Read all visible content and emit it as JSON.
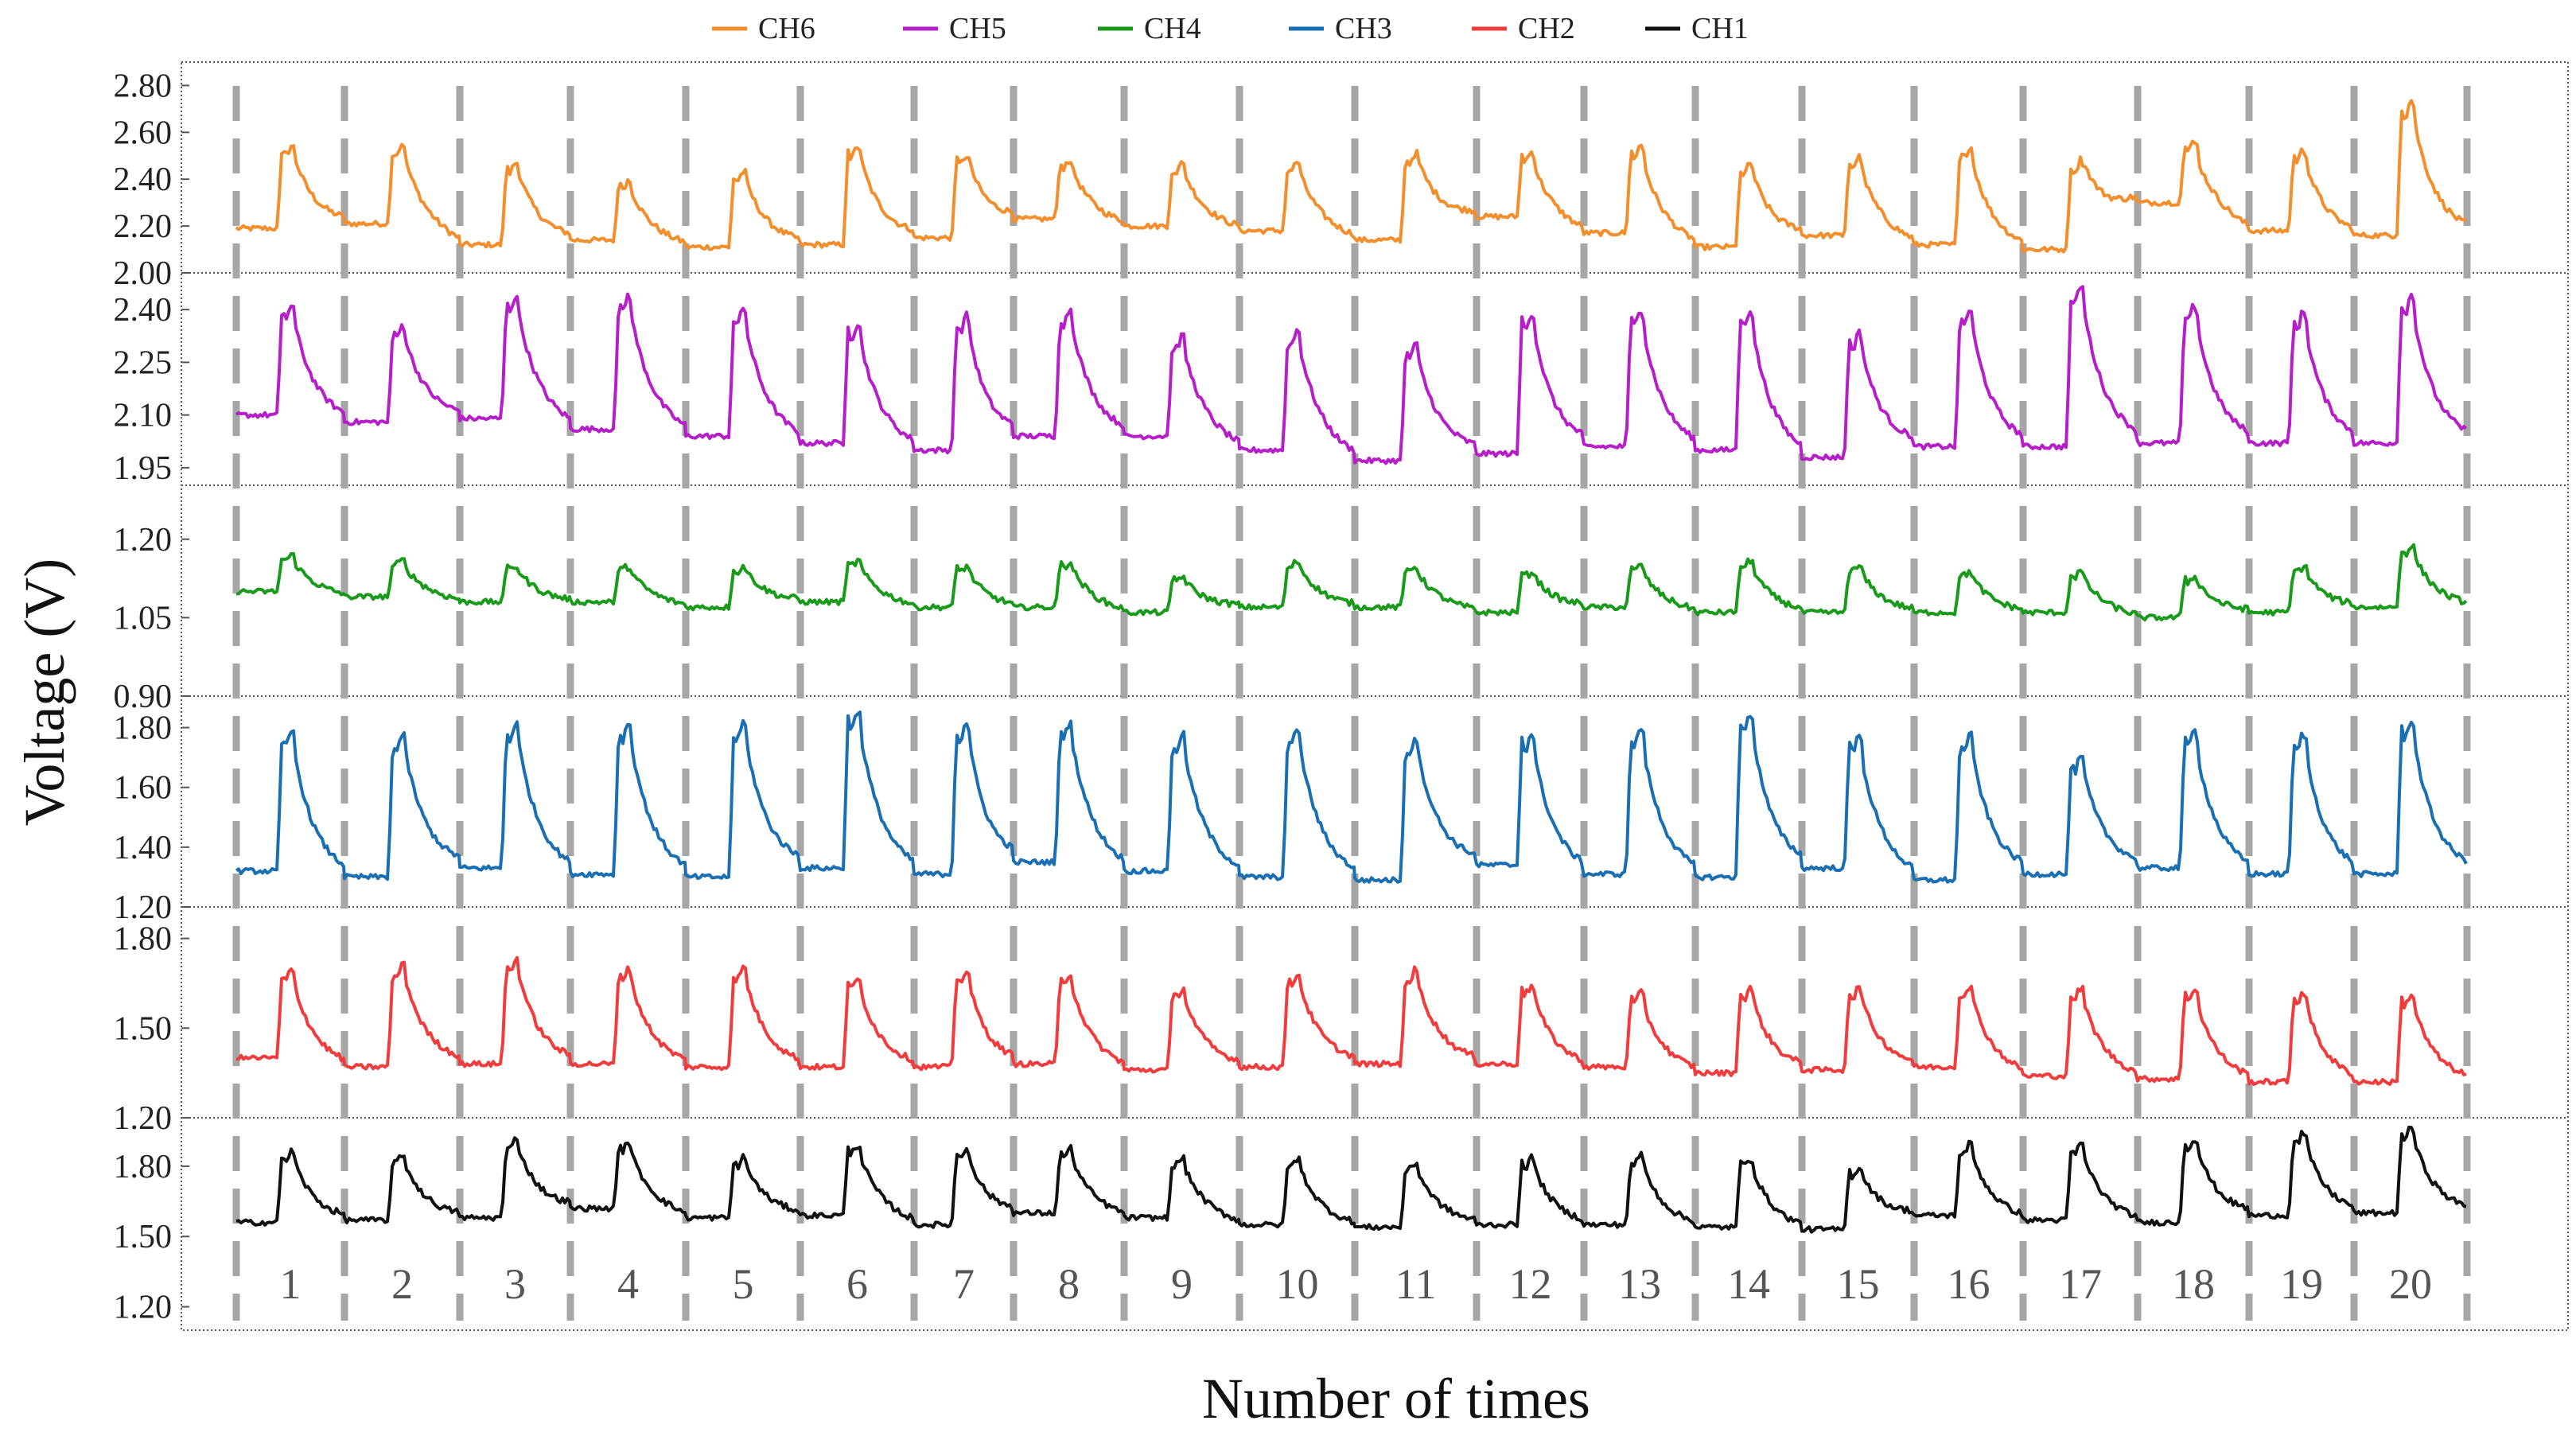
{
  "chart_data": {
    "type": "line",
    "title": "",
    "xlabel": "Number of times",
    "ylabel": "Voltage (V)",
    "x_categories": [
      "1",
      "2",
      "3",
      "4",
      "5",
      "6",
      "7",
      "8",
      "9",
      "10",
      "11",
      "12",
      "13",
      "14",
      "15",
      "16",
      "17",
      "18",
      "19",
      "20"
    ],
    "legend": [
      {
        "name": "CH6",
        "color": "#f28e2b"
      },
      {
        "name": "CH5",
        "color": "#b51ec8"
      },
      {
        "name": "CH4",
        "color": "#1a9a1a"
      },
      {
        "name": "CH3",
        "color": "#1a6fb3"
      },
      {
        "name": "CH2",
        "color": "#f03c3c"
      },
      {
        "name": "CH1",
        "color": "#111111"
      }
    ],
    "grid": "dashed gray vertical separators between trials",
    "panels": [
      {
        "name": "CH6",
        "color": "#f28e2b",
        "ylim": [
          2.0,
          2.9
        ],
        "ticks": [
          "2.80",
          "2.60",
          "2.40",
          "2.20",
          "2.00"
        ],
        "tick_values": [
          2.8,
          2.6,
          2.4,
          2.2,
          2.0
        ],
        "baseline": [
          2.19,
          2.21,
          2.12,
          2.14,
          2.11,
          2.12,
          2.15,
          2.23,
          2.2,
          2.18,
          2.14,
          2.24,
          2.17,
          2.11,
          2.16,
          2.12,
          2.1,
          2.3,
          2.18,
          2.16
        ],
        "peak": [
          2.55,
          2.56,
          2.48,
          2.4,
          2.44,
          2.55,
          2.51,
          2.49,
          2.47,
          2.48,
          2.52,
          2.52,
          2.55,
          2.47,
          2.5,
          2.55,
          2.49,
          2.56,
          2.53,
          2.75
        ]
      },
      {
        "name": "CH5",
        "color": "#b51ec8",
        "ylim": [
          1.9,
          2.5
        ],
        "ticks": [
          "2.40",
          "2.25",
          "2.10",
          "1.95"
        ],
        "tick_values": [
          2.4,
          2.25,
          2.1,
          1.95
        ],
        "baseline": [
          2.1,
          2.08,
          2.09,
          2.06,
          2.04,
          2.02,
          2.0,
          2.04,
          2.04,
          2.0,
          1.97,
          1.99,
          2.01,
          2.0,
          1.98,
          2.01,
          2.01,
          2.02,
          2.02,
          2.02
        ],
        "peak": [
          2.42,
          2.36,
          2.45,
          2.45,
          2.41,
          2.37,
          2.39,
          2.41,
          2.33,
          2.35,
          2.31,
          2.4,
          2.41,
          2.41,
          2.34,
          2.41,
          2.48,
          2.42,
          2.4,
          2.45
        ]
      },
      {
        "name": "CH4",
        "color": "#1a9a1a",
        "ylim": [
          0.9,
          1.3
        ],
        "ticks": [
          "1.20",
          "1.05",
          "0.90"
        ],
        "tick_values": [
          1.2,
          1.05,
          0.9
        ],
        "baseline": [
          1.1,
          1.09,
          1.08,
          1.08,
          1.07,
          1.08,
          1.07,
          1.07,
          1.06,
          1.07,
          1.07,
          1.06,
          1.07,
          1.06,
          1.06,
          1.06,
          1.06,
          1.05,
          1.06,
          1.07
        ],
        "peak": [
          1.17,
          1.16,
          1.15,
          1.15,
          1.15,
          1.16,
          1.15,
          1.16,
          1.13,
          1.16,
          1.15,
          1.14,
          1.15,
          1.16,
          1.15,
          1.14,
          1.14,
          1.13,
          1.15,
          1.19
        ]
      },
      {
        "name": "CH3",
        "color": "#1a6fb3",
        "ylim": [
          1.2,
          1.9
        ],
        "ticks": [
          "1.80",
          "1.60",
          "1.40",
          "1.20"
        ],
        "tick_values": [
          1.8,
          1.6,
          1.4,
          1.2
        ],
        "baseline": [
          1.32,
          1.3,
          1.33,
          1.31,
          1.3,
          1.33,
          1.31,
          1.35,
          1.32,
          1.3,
          1.29,
          1.34,
          1.31,
          1.3,
          1.33,
          1.29,
          1.31,
          1.33,
          1.31,
          1.31
        ],
        "peak": [
          1.8,
          1.79,
          1.83,
          1.83,
          1.83,
          1.87,
          1.83,
          1.83,
          1.79,
          1.81,
          1.78,
          1.79,
          1.81,
          1.86,
          1.78,
          1.79,
          1.71,
          1.8,
          1.79,
          1.84
        ]
      },
      {
        "name": "CH2",
        "color": "#f03c3c",
        "ylim": [
          1.2,
          1.9
        ],
        "ticks": [
          "1.80",
          "1.50",
          "1.20"
        ],
        "tick_values": [
          1.8,
          1.5,
          1.2
        ],
        "baseline": [
          1.4,
          1.37,
          1.38,
          1.38,
          1.37,
          1.37,
          1.37,
          1.38,
          1.36,
          1.37,
          1.38,
          1.38,
          1.37,
          1.35,
          1.36,
          1.37,
          1.34,
          1.33,
          1.32,
          1.32
        ],
        "peak": [
          1.7,
          1.72,
          1.74,
          1.71,
          1.71,
          1.67,
          1.7,
          1.69,
          1.64,
          1.69,
          1.7,
          1.65,
          1.62,
          1.64,
          1.64,
          1.65,
          1.64,
          1.64,
          1.63,
          1.62
        ]
      },
      {
        "name": "CH1",
        "color": "#111111",
        "ylim": [
          1.1,
          2.0
        ],
        "ticks": [
          "1.80",
          "1.50",
          "1.20"
        ],
        "tick_values": [
          1.8,
          1.5,
          1.2
        ],
        "baseline": [
          1.56,
          1.57,
          1.58,
          1.62,
          1.58,
          1.59,
          1.55,
          1.6,
          1.58,
          1.55,
          1.54,
          1.55,
          1.55,
          1.54,
          1.53,
          1.59,
          1.57,
          1.56,
          1.59,
          1.6
        ],
        "peak": [
          1.87,
          1.85,
          1.92,
          1.91,
          1.84,
          1.9,
          1.88,
          1.88,
          1.84,
          1.84,
          1.82,
          1.84,
          1.85,
          1.84,
          1.8,
          1.9,
          1.9,
          1.93,
          1.95,
          1.97
        ]
      }
    ]
  }
}
